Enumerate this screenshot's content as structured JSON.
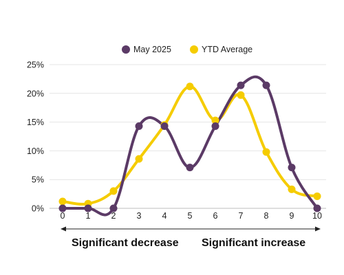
{
  "chart_data": {
    "type": "line",
    "smooth": true,
    "x": [
      0,
      1,
      2,
      3,
      4,
      5,
      6,
      7,
      8,
      9,
      10
    ],
    "series": [
      {
        "name": "May 2025",
        "color": "#5B3A66",
        "values": [
          0.0,
          0.0,
          0.0,
          14.3,
          14.3,
          7.1,
          14.3,
          21.4,
          21.4,
          7.1,
          0.0
        ]
      },
      {
        "name": "YTD Average",
        "color": "#F5CC00",
        "values": [
          1.2,
          0.8,
          3.0,
          8.6,
          14.5,
          21.2,
          15.3,
          19.7,
          9.8,
          3.3,
          2.1
        ]
      }
    ],
    "ylim": [
      0,
      25
    ],
    "y_ticks": [
      0,
      5,
      10,
      15,
      20,
      25
    ],
    "y_tick_labels": [
      "0%",
      "5%",
      "10%",
      "15%",
      "20%",
      "25%"
    ],
    "x_tick_labels": [
      "0",
      "1",
      "2",
      "3",
      "4",
      "5",
      "6",
      "7",
      "8",
      "9",
      "10"
    ],
    "grid": true,
    "legend_position": "top-center",
    "annotations": {
      "left": "Significant decrease",
      "right": "Significant increase"
    }
  }
}
